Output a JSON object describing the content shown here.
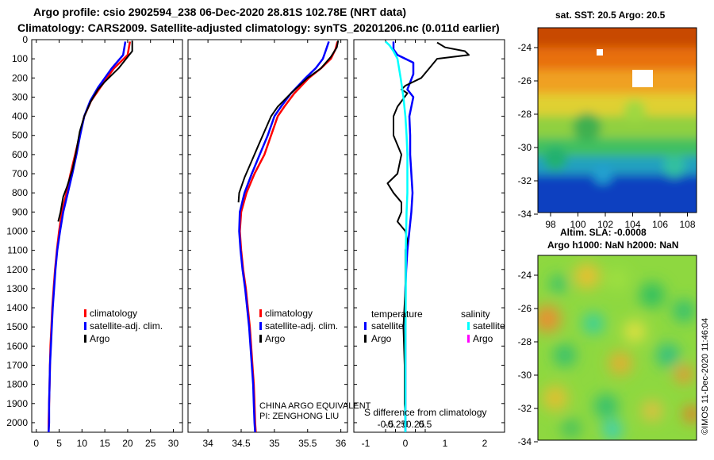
{
  "header": {
    "line1": "Argo profile: csio 2902594_238 06-Dec-2020 28.81S 102.78E (NRT data)",
    "line2": "Climatology: CARS2009. Satellite-adjusted climatology: synTS_20201206.nc (0.011d earlier)"
  },
  "depth_axis": {
    "ticks": [
      0,
      100,
      200,
      300,
      400,
      500,
      600,
      700,
      800,
      900,
      1000,
      1100,
      1200,
      1300,
      1400,
      1500,
      1600,
      1700,
      1800,
      1900,
      2000
    ],
    "ylim": [
      0,
      2050
    ]
  },
  "chart_data": [
    {
      "type": "line",
      "name": "temperature-profile",
      "xlabel": "",
      "ylabel": "depth",
      "xlim": [
        -1,
        32
      ],
      "xticks": [
        0,
        5,
        10,
        15,
        20,
        25,
        30
      ],
      "legend": {
        "items": [
          "climatology",
          "satellite-adj. clim.",
          "Argo"
        ],
        "placement": "bottom-right"
      },
      "series": [
        {
          "name": "climatology",
          "color": "#ff0000",
          "points": [
            [
              20.5,
              10
            ],
            [
              20,
              80
            ],
            [
              17,
              150
            ],
            [
              14,
              250
            ],
            [
              12,
              320
            ],
            [
              10.5,
              400
            ],
            [
              9.5,
              500
            ],
            [
              8.5,
              600
            ],
            [
              7.5,
              700
            ],
            [
              6.6,
              800
            ],
            [
              5.6,
              900
            ],
            [
              5,
              1000
            ],
            [
              4.5,
              1100
            ],
            [
              4.1,
              1200
            ],
            [
              3.8,
              1300
            ],
            [
              3.5,
              1400
            ],
            [
              3.3,
              1500
            ],
            [
              3.1,
              1600
            ],
            [
              3,
              1700
            ],
            [
              2.9,
              1800
            ],
            [
              2.8,
              1900
            ],
            [
              2.7,
              2000
            ],
            [
              2.7,
              2050
            ]
          ]
        },
        {
          "name": "satellite-adj. clim.",
          "color": "#0000ff",
          "points": [
            [
              19.5,
              10
            ],
            [
              19,
              80
            ],
            [
              16.5,
              150
            ],
            [
              13.5,
              250
            ],
            [
              11.8,
              320
            ],
            [
              10.5,
              400
            ],
            [
              9.6,
              500
            ],
            [
              8.8,
              600
            ],
            [
              7.9,
              700
            ],
            [
              6.9,
              800
            ],
            [
              5.9,
              900
            ],
            [
              5.2,
              1000
            ],
            [
              4.6,
              1100
            ],
            [
              4.2,
              1200
            ],
            [
              3.9,
              1300
            ],
            [
              3.6,
              1400
            ],
            [
              3.4,
              1500
            ],
            [
              3.2,
              1600
            ],
            [
              3,
              1700
            ],
            [
              2.9,
              1800
            ],
            [
              2.8,
              1900
            ],
            [
              2.8,
              2000
            ],
            [
              2.7,
              2050
            ]
          ]
        },
        {
          "name": "Argo",
          "color": "#000000",
          "points": [
            [
              21,
              5
            ],
            [
              21,
              60
            ],
            [
              20,
              90
            ],
            [
              18,
              150
            ],
            [
              15,
              220
            ],
            [
              13.5,
              260
            ],
            [
              12,
              320
            ],
            [
              10.5,
              400
            ],
            [
              9.5,
              480
            ],
            [
              8.6,
              600
            ],
            [
              7.9,
              680
            ],
            [
              6.7,
              770
            ],
            [
              5.9,
              820
            ],
            [
              5.3,
              900
            ],
            [
              4.8,
              950
            ]
          ]
        }
      ]
    },
    {
      "type": "line",
      "name": "salinity-profile",
      "xlabel": "",
      "ylabel": "depth",
      "xlim": [
        33.7,
        36.1
      ],
      "xticks": [
        34,
        34.5,
        35,
        35.5,
        36
      ],
      "legend": {
        "items": [
          "climatology",
          "satellite-adj. clim.",
          "Argo"
        ],
        "placement": "bottom-right"
      },
      "series": [
        {
          "name": "climatology",
          "color": "#ff0000",
          "points": [
            [
              35.95,
              10
            ],
            [
              35.92,
              50
            ],
            [
              35.85,
              100
            ],
            [
              35.7,
              150
            ],
            [
              35.52,
              200
            ],
            [
              35.3,
              280
            ],
            [
              35.15,
              350
            ],
            [
              35.05,
              400
            ],
            [
              34.95,
              500
            ],
            [
              34.85,
              600
            ],
            [
              34.7,
              700
            ],
            [
              34.58,
              800
            ],
            [
              34.5,
              900
            ],
            [
              34.48,
              1000
            ],
            [
              34.5,
              1100
            ],
            [
              34.53,
              1200
            ],
            [
              34.57,
              1300
            ],
            [
              34.6,
              1400
            ],
            [
              34.63,
              1500
            ],
            [
              34.65,
              1600
            ],
            [
              34.67,
              1700
            ],
            [
              34.69,
              1800
            ],
            [
              34.7,
              1900
            ],
            [
              34.71,
              2000
            ],
            [
              34.72,
              2050
            ]
          ]
        },
        {
          "name": "satellite-adj. clim.",
          "color": "#0000ff",
          "points": [
            [
              35.82,
              10
            ],
            [
              35.78,
              50
            ],
            [
              35.73,
              100
            ],
            [
              35.62,
              150
            ],
            [
              35.47,
              200
            ],
            [
              35.25,
              280
            ],
            [
              35.1,
              350
            ],
            [
              35,
              400
            ],
            [
              34.9,
              500
            ],
            [
              34.78,
              600
            ],
            [
              34.66,
              700
            ],
            [
              34.55,
              800
            ],
            [
              34.48,
              900
            ],
            [
              34.47,
              1000
            ],
            [
              34.49,
              1100
            ],
            [
              34.52,
              1200
            ],
            [
              34.56,
              1300
            ],
            [
              34.59,
              1400
            ],
            [
              34.62,
              1500
            ],
            [
              34.64,
              1600
            ],
            [
              34.66,
              1700
            ],
            [
              34.68,
              1800
            ],
            [
              34.69,
              1900
            ],
            [
              34.7,
              2000
            ],
            [
              34.71,
              2050
            ]
          ]
        },
        {
          "name": "Argo",
          "color": "#000000",
          "points": [
            [
              35.96,
              5
            ],
            [
              35.94,
              40
            ],
            [
              35.85,
              90
            ],
            [
              35.7,
              150
            ],
            [
              35.5,
              200
            ],
            [
              35.25,
              280
            ],
            [
              35.05,
              350
            ],
            [
              34.95,
              400
            ],
            [
              34.85,
              480
            ],
            [
              34.75,
              560
            ],
            [
              34.65,
              640
            ],
            [
              34.55,
              720
            ],
            [
              34.47,
              800
            ],
            [
              34.46,
              850
            ]
          ]
        }
      ]
    },
    {
      "type": "line",
      "name": "difference-profile",
      "xlabel": "S difference from climatology",
      "ylabel": "depth",
      "xlim": [
        -1.3,
        2.5
      ],
      "xticks": [
        -0.5,
        -0.25,
        0,
        0.25,
        0.5
      ],
      "secondary_xticks": [
        -1,
        0,
        1,
        2
      ],
      "legend": {
        "groups": [
          {
            "title": "temperature",
            "items": [
              "satellite",
              "Argo"
            ],
            "placement": "bottom-left"
          },
          {
            "title": "salinity",
            "items": [
              "satellite",
              "Argo"
            ],
            "placement": "bottom-right"
          }
        ]
      },
      "series": [
        {
          "name": "temperature satellite",
          "color": "#0000ff",
          "points": [
            [
              -0.3,
              10
            ],
            [
              -0.3,
              50
            ],
            [
              -0.2,
              80
            ],
            [
              0.2,
              120
            ],
            [
              0.2,
              180
            ],
            [
              0.05,
              260
            ],
            [
              0.2,
              300
            ],
            [
              0.1,
              400
            ],
            [
              0.12,
              500
            ],
            [
              0.12,
              600
            ],
            [
              0.15,
              700
            ],
            [
              0.18,
              800
            ],
            [
              0.15,
              900
            ],
            [
              0.1,
              1000
            ],
            [
              0.05,
              1100
            ],
            [
              0.02,
              1200
            ],
            [
              0,
              1300
            ],
            [
              0,
              2050
            ]
          ]
        },
        {
          "name": "temperature Argo",
          "color": "#000000",
          "points": [
            [
              0.8,
              15
            ],
            [
              1,
              40
            ],
            [
              1.5,
              60
            ],
            [
              1.6,
              80
            ],
            [
              0.8,
              100
            ],
            [
              0.6,
              150
            ],
            [
              0.4,
              200
            ],
            [
              0,
              240
            ],
            [
              -0.1,
              260
            ],
            [
              0.05,
              280
            ],
            [
              -0.2,
              350
            ],
            [
              -0.3,
              400
            ],
            [
              -0.3,
              500
            ],
            [
              -0.1,
              600
            ],
            [
              -0.2,
              700
            ],
            [
              -0.45,
              750
            ],
            [
              -0.3,
              800
            ],
            [
              -0.1,
              850
            ],
            [
              -0.1,
              900
            ],
            [
              -0.2,
              950
            ],
            [
              0,
              1000
            ],
            [
              0.05,
              1050
            ],
            [
              0,
              1100
            ],
            [
              0,
              1300
            ],
            [
              -0.05,
              1500
            ],
            [
              -0.02,
              1700
            ],
            [
              -0.02,
              1900
            ],
            [
              0,
              1950
            ]
          ]
        },
        {
          "name": "salinity satellite",
          "color": "#00ffff",
          "points": [
            [
              -0.5,
              10
            ],
            [
              -0.4,
              30
            ],
            [
              -0.3,
              60
            ],
            [
              -0.2,
              100
            ],
            [
              -0.12,
              200
            ],
            [
              -0.05,
              300
            ],
            [
              0,
              400
            ],
            [
              0.03,
              500
            ],
            [
              0.05,
              600
            ],
            [
              0.05,
              700
            ],
            [
              0.05,
              800
            ],
            [
              0.03,
              900
            ],
            [
              0.02,
              1000
            ],
            [
              0.01,
              1100
            ],
            [
              0.01,
              1300
            ],
            [
              0,
              1600
            ],
            [
              0,
              2050
            ]
          ]
        },
        {
          "name": "salinity Argo",
          "color": "#ff00ff",
          "points": []
        }
      ]
    }
  ],
  "panel_labels": {
    "temperature_legend": {
      "climatology": "climatology",
      "satellite": "satellite-adj. clim.",
      "argo": "Argo"
    },
    "salinity_legend": {
      "climatology": "climatology",
      "satellite": "satellite-adj. clim.",
      "argo": "Argo"
    },
    "diff_legend": {
      "temp_title": "temperature",
      "sal_title": "salinity",
      "satellite": "satellite",
      "argo": "Argo"
    },
    "attribution_line1": "CHINA ARGO EQUIVALENT",
    "attribution_line2": "PI: ZENGHONG LIU"
  },
  "sst_map": {
    "title": "sat. SST: 20.5 Argo: 20.5",
    "lat_ticks": [
      "-24",
      "-26",
      "-28",
      "-30",
      "-32",
      "-34"
    ],
    "lon_ticks": [
      "98",
      "100",
      "102",
      "104",
      "106",
      "108"
    ]
  },
  "sla_map": {
    "title_line1": "Altim. SLA: -0.0008",
    "title_line2": "Argo h1000: NaN h2000: NaN",
    "lat_ticks": [
      "-24",
      "-26",
      "-28",
      "-30",
      "-32",
      "-34"
    ]
  },
  "footer": {
    "credit": "©IMOS 11-Dec-2020 11:46:04"
  },
  "colors": {
    "climatology": "#ff0000",
    "satellite": "#0000ff",
    "argo": "#000000",
    "salinity_satellite": "#00ffff",
    "salinity_argo": "#ff00ff"
  }
}
